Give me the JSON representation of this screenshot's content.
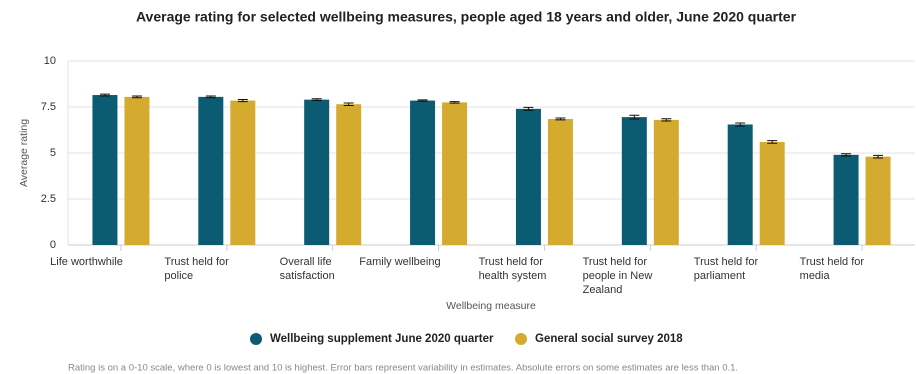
{
  "chart_data": {
    "type": "bar",
    "title": "Average rating for selected wellbeing measures, people aged 18 years and older, June 2020 quarter",
    "x_label": "Wellbeing measure",
    "y_label": "Average rating",
    "note": "Rating is on a 0-10 scale, where 0 is lowest and 10 is highest. Error bars represent variability in estimates. Absolute errors on some estimates are less than 0.1.",
    "categories": [
      "Life worthwhile",
      "Trust held for police",
      "Overall life satisfaction",
      "Family wellbeing",
      "Trust held for health system",
      "Trust held for people in New Zealand",
      "Trust held for parliament",
      "Trust held for media"
    ],
    "series": [
      {
        "name": "Wellbeing supplement June 2020 quarter",
        "color": "#0b5c73",
        "values": [
          8.15,
          8.05,
          7.9,
          7.85,
          7.4,
          6.95,
          6.55,
          4.9
        ],
        "errors": [
          0.05,
          0.05,
          0.05,
          0.04,
          0.08,
          0.1,
          0.08,
          0.06
        ]
      },
      {
        "name": "General social survey 2018",
        "color": "#d4ab2e",
        "values": [
          8.05,
          7.85,
          7.65,
          7.75,
          6.85,
          6.8,
          5.6,
          4.8
        ],
        "errors": [
          0.05,
          0.06,
          0.07,
          0.04,
          0.05,
          0.06,
          0.07,
          0.07
        ]
      }
    ],
    "ylim": [
      0,
      10
    ],
    "yticks": [
      0,
      2.5,
      5,
      7.5,
      10
    ],
    "grid": true,
    "legend": "bottom"
  }
}
